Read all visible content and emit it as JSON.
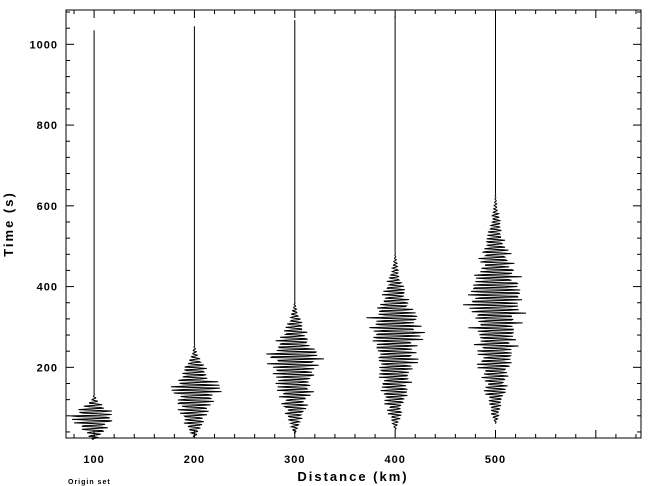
{
  "chart_data": {
    "type": "line",
    "title": "",
    "xlabel": "Distance (km)",
    "ylabel": "Time (s)",
    "xlim": [
      72,
      645
    ],
    "ylim": [
      25,
      1085
    ],
    "xticks": [
      100,
      200,
      300,
      400,
      500
    ],
    "yticks": [
      200,
      400,
      600,
      800,
      1000
    ],
    "grid": false,
    "legend": "none",
    "line_color": "#000000",
    "series": [
      {
        "distance_km": 100,
        "trace_start_s": 1035,
        "trace_end_s": 20,
        "packet_start_s": 135,
        "packet_peak_s": 80,
        "packet_end_s": 20,
        "peak_amplitude_km": 28
      },
      {
        "distance_km": 200,
        "trace_start_s": 1045,
        "trace_end_s": 25,
        "packet_start_s": 260,
        "packet_peak_s": 155,
        "packet_end_s": 25,
        "peak_amplitude_km": 30
      },
      {
        "distance_km": 300,
        "trace_start_s": 1060,
        "trace_end_s": 35,
        "packet_start_s": 370,
        "packet_peak_s": 230,
        "packet_end_s": 35,
        "peak_amplitude_km": 32
      },
      {
        "distance_km": 400,
        "trace_start_s": 1070,
        "trace_end_s": 45,
        "packet_start_s": 490,
        "packet_peak_s": 305,
        "packet_end_s": 45,
        "peak_amplitude_km": 34
      },
      {
        "distance_km": 500,
        "trace_start_s": 1085,
        "trace_end_s": 60,
        "packet_start_s": 640,
        "packet_peak_s": 380,
        "packet_end_s": 60,
        "peak_amplitude_km": 36
      }
    ]
  },
  "footnote": "Origin set"
}
